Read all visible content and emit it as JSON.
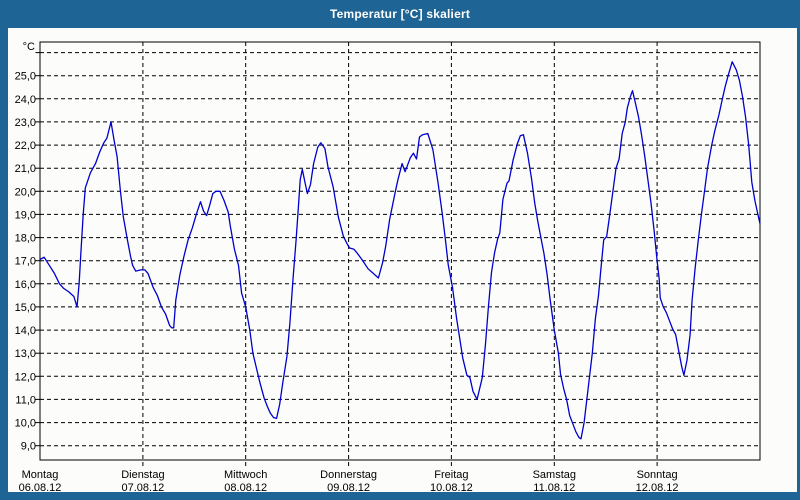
{
  "window": {
    "title": "Temperatur [°C] skaliert"
  },
  "colors": {
    "frame": "#1e6494",
    "titlebar": "#1e6494",
    "title_text": "#ffffff",
    "background": "#fcfdfa",
    "grid": "#000000",
    "axis": "#000000",
    "label_text": "#000000",
    "line": "#0000cd"
  },
  "chart_data": {
    "type": "line",
    "title": "Temperatur [°C] skaliert",
    "ylabel": "°C",
    "xlabel": "",
    "grid": true,
    "ylim": [
      8.4,
      26.5
    ],
    "y_gridline_values": [
      9,
      10,
      11,
      12,
      13,
      14,
      15,
      16,
      17,
      18,
      19,
      20,
      21,
      22,
      23,
      24,
      25,
      26
    ],
    "y_tick_labels": [
      {
        "value": 25,
        "label": "25,0"
      },
      {
        "value": 24,
        "label": "24,0"
      },
      {
        "value": 23,
        "label": "23,0"
      },
      {
        "value": 22,
        "label": "22,0"
      },
      {
        "value": 21,
        "label": "21,0"
      },
      {
        "value": 20,
        "label": "20,0"
      },
      {
        "value": 19,
        "label": "19,0"
      },
      {
        "value": 18,
        "label": "18,0"
      },
      {
        "value": 17,
        "label": "17,0"
      },
      {
        "value": 16,
        "label": "16,0"
      },
      {
        "value": 15,
        "label": "15,0"
      },
      {
        "value": 14,
        "label": "14,0"
      },
      {
        "value": 13,
        "label": "13,0"
      },
      {
        "value": 12,
        "label": "12,0"
      },
      {
        "value": 11,
        "label": "11,0"
      },
      {
        "value": 10,
        "label": "10,0"
      },
      {
        "value": 9,
        "label": "9,0"
      }
    ],
    "x_days": [
      {
        "name": "Montag",
        "date": "06.08.12"
      },
      {
        "name": "Dienstag",
        "date": "07.08.12"
      },
      {
        "name": "Mittwoch",
        "date": "08.08.12"
      },
      {
        "name": "Donnerstag",
        "date": "09.08.12"
      },
      {
        "name": "Freitag",
        "date": "10.08.12"
      },
      {
        "name": "Samstag",
        "date": "11.08.12"
      },
      {
        "name": "Sonntag",
        "date": "12.08.12"
      }
    ],
    "series": [
      {
        "name": "Temperatur",
        "color": "#0000cd",
        "points": [
          [
            0.0,
            17.05
          ],
          [
            0.04,
            17.15
          ],
          [
            0.09,
            16.8
          ],
          [
            0.14,
            16.45
          ],
          [
            0.19,
            16.0
          ],
          [
            0.23,
            15.8
          ],
          [
            0.28,
            15.65
          ],
          [
            0.33,
            15.45
          ],
          [
            0.36,
            15.0
          ],
          [
            0.38,
            16.0
          ],
          [
            0.4,
            17.5
          ],
          [
            0.42,
            19.0
          ],
          [
            0.44,
            20.15
          ],
          [
            0.49,
            20.8
          ],
          [
            0.54,
            21.2
          ],
          [
            0.58,
            21.7
          ],
          [
            0.62,
            22.1
          ],
          [
            0.65,
            22.3
          ],
          [
            0.69,
            23.0
          ],
          [
            0.72,
            22.2
          ],
          [
            0.75,
            21.5
          ],
          [
            0.78,
            20.1
          ],
          [
            0.81,
            18.9
          ],
          [
            0.85,
            17.9
          ],
          [
            0.88,
            17.2
          ],
          [
            0.9,
            16.8
          ],
          [
            0.93,
            16.55
          ],
          [
            0.98,
            16.6
          ],
          [
            1.02,
            16.6
          ],
          [
            1.05,
            16.45
          ],
          [
            1.1,
            15.85
          ],
          [
            1.14,
            15.5
          ],
          [
            1.18,
            15.0
          ],
          [
            1.22,
            14.7
          ],
          [
            1.26,
            14.2
          ],
          [
            1.28,
            14.1
          ],
          [
            1.3,
            14.1
          ],
          [
            1.32,
            15.3
          ],
          [
            1.36,
            16.4
          ],
          [
            1.4,
            17.2
          ],
          [
            1.44,
            17.9
          ],
          [
            1.48,
            18.4
          ],
          [
            1.52,
            19.0
          ],
          [
            1.56,
            19.55
          ],
          [
            1.59,
            19.15
          ],
          [
            1.62,
            18.95
          ],
          [
            1.65,
            19.4
          ],
          [
            1.68,
            19.9
          ],
          [
            1.71,
            20.0
          ],
          [
            1.75,
            20.0
          ],
          [
            1.79,
            19.6
          ],
          [
            1.83,
            19.1
          ],
          [
            1.85,
            18.5
          ],
          [
            1.89,
            17.5
          ],
          [
            1.93,
            16.8
          ],
          [
            1.96,
            15.6
          ],
          [
            2.0,
            15.0
          ],
          [
            2.04,
            14.0
          ],
          [
            2.07,
            13.0
          ],
          [
            2.11,
            12.25
          ],
          [
            2.14,
            11.7
          ],
          [
            2.18,
            11.05
          ],
          [
            2.21,
            10.7
          ],
          [
            2.24,
            10.4
          ],
          [
            2.27,
            10.22
          ],
          [
            2.3,
            10.18
          ],
          [
            2.33,
            10.8
          ],
          [
            2.36,
            11.7
          ],
          [
            2.4,
            12.85
          ],
          [
            2.43,
            14.3
          ],
          [
            2.46,
            16.2
          ],
          [
            2.49,
            17.9
          ],
          [
            2.51,
            19.2
          ],
          [
            2.53,
            20.5
          ],
          [
            2.55,
            20.95
          ],
          [
            2.58,
            20.3
          ],
          [
            2.6,
            19.9
          ],
          [
            2.63,
            20.3
          ],
          [
            2.66,
            21.2
          ],
          [
            2.7,
            21.9
          ],
          [
            2.73,
            22.1
          ],
          [
            2.77,
            21.85
          ],
          [
            2.8,
            21.05
          ],
          [
            2.85,
            20.2
          ],
          [
            2.9,
            18.9
          ],
          [
            2.95,
            18.05
          ],
          [
            2.99,
            17.7
          ],
          [
            3.01,
            17.55
          ],
          [
            3.05,
            17.5
          ],
          [
            3.08,
            17.35
          ],
          [
            3.13,
            17.05
          ],
          [
            3.19,
            16.65
          ],
          [
            3.24,
            16.45
          ],
          [
            3.29,
            16.25
          ],
          [
            3.33,
            16.9
          ],
          [
            3.36,
            17.6
          ],
          [
            3.4,
            18.8
          ],
          [
            3.45,
            19.9
          ],
          [
            3.48,
            20.5
          ],
          [
            3.52,
            21.2
          ],
          [
            3.55,
            20.85
          ],
          [
            3.6,
            21.45
          ],
          [
            3.63,
            21.65
          ],
          [
            3.66,
            21.4
          ],
          [
            3.69,
            22.35
          ],
          [
            3.72,
            22.45
          ],
          [
            3.77,
            22.5
          ],
          [
            3.82,
            21.8
          ],
          [
            3.87,
            20.35
          ],
          [
            3.91,
            19.05
          ],
          [
            3.94,
            17.95
          ],
          [
            3.97,
            16.8
          ],
          [
            4.01,
            15.85
          ],
          [
            4.05,
            14.5
          ],
          [
            4.08,
            13.65
          ],
          [
            4.11,
            12.8
          ],
          [
            4.15,
            12.05
          ],
          [
            4.18,
            11.95
          ],
          [
            4.21,
            11.35
          ],
          [
            4.25,
            11.0
          ],
          [
            4.3,
            11.95
          ],
          [
            4.33,
            13.35
          ],
          [
            4.36,
            15.05
          ],
          [
            4.39,
            16.5
          ],
          [
            4.42,
            17.35
          ],
          [
            4.45,
            17.95
          ],
          [
            4.47,
            18.2
          ],
          [
            4.5,
            19.65
          ],
          [
            4.54,
            20.35
          ],
          [
            4.56,
            20.45
          ],
          [
            4.6,
            21.35
          ],
          [
            4.64,
            22.05
          ],
          [
            4.67,
            22.4
          ],
          [
            4.7,
            22.45
          ],
          [
            4.74,
            21.65
          ],
          [
            4.78,
            20.5
          ],
          [
            4.81,
            19.5
          ],
          [
            4.84,
            18.7
          ],
          [
            4.87,
            18.0
          ],
          [
            4.9,
            17.3
          ],
          [
            4.93,
            16.4
          ],
          [
            4.96,
            15.3
          ],
          [
            5.0,
            14.0
          ],
          [
            5.04,
            13.0
          ],
          [
            5.06,
            12.1
          ],
          [
            5.09,
            11.5
          ],
          [
            5.12,
            11.0
          ],
          [
            5.15,
            10.3
          ],
          [
            5.18,
            9.95
          ],
          [
            5.21,
            9.6
          ],
          [
            5.24,
            9.35
          ],
          [
            5.26,
            9.3
          ],
          [
            5.29,
            10.0
          ],
          [
            5.33,
            11.5
          ],
          [
            5.37,
            13.0
          ],
          [
            5.4,
            14.5
          ],
          [
            5.43,
            15.5
          ],
          [
            5.45,
            16.5
          ],
          [
            5.48,
            17.9
          ],
          [
            5.51,
            18.05
          ],
          [
            5.54,
            19.0
          ],
          [
            5.57,
            20.0
          ],
          [
            5.6,
            21.0
          ],
          [
            5.63,
            21.4
          ],
          [
            5.66,
            22.5
          ],
          [
            5.69,
            23.0
          ],
          [
            5.71,
            23.6
          ],
          [
            5.74,
            24.1
          ],
          [
            5.76,
            24.35
          ],
          [
            5.79,
            23.8
          ],
          [
            5.82,
            23.2
          ],
          [
            5.85,
            22.4
          ],
          [
            5.88,
            21.5
          ],
          [
            5.91,
            20.5
          ],
          [
            5.94,
            19.5
          ],
          [
            5.97,
            18.3
          ],
          [
            6.0,
            17.0
          ],
          [
            6.02,
            16.2
          ],
          [
            6.03,
            15.4
          ],
          [
            6.06,
            15.0
          ],
          [
            6.09,
            14.75
          ],
          [
            6.12,
            14.4
          ],
          [
            6.15,
            14.05
          ],
          [
            6.18,
            13.8
          ],
          [
            6.21,
            13.1
          ],
          [
            6.24,
            12.4
          ],
          [
            6.26,
            12.05
          ],
          [
            6.29,
            12.7
          ],
          [
            6.32,
            13.8
          ],
          [
            6.34,
            15.3
          ],
          [
            6.37,
            16.7
          ],
          [
            6.4,
            17.9
          ],
          [
            6.43,
            19.0
          ],
          [
            6.46,
            20.0
          ],
          [
            6.49,
            21.0
          ],
          [
            6.53,
            22.0
          ],
          [
            6.56,
            22.6
          ],
          [
            6.6,
            23.3
          ],
          [
            6.63,
            23.9
          ],
          [
            6.66,
            24.5
          ],
          [
            6.69,
            25.0
          ],
          [
            6.73,
            25.6
          ],
          [
            6.77,
            25.25
          ],
          [
            6.8,
            24.8
          ],
          [
            6.83,
            24.1
          ],
          [
            6.86,
            23.2
          ],
          [
            6.89,
            22.0
          ],
          [
            6.92,
            20.4
          ],
          [
            6.95,
            19.6
          ],
          [
            6.98,
            19.0
          ],
          [
            7.0,
            18.6
          ]
        ]
      }
    ]
  }
}
